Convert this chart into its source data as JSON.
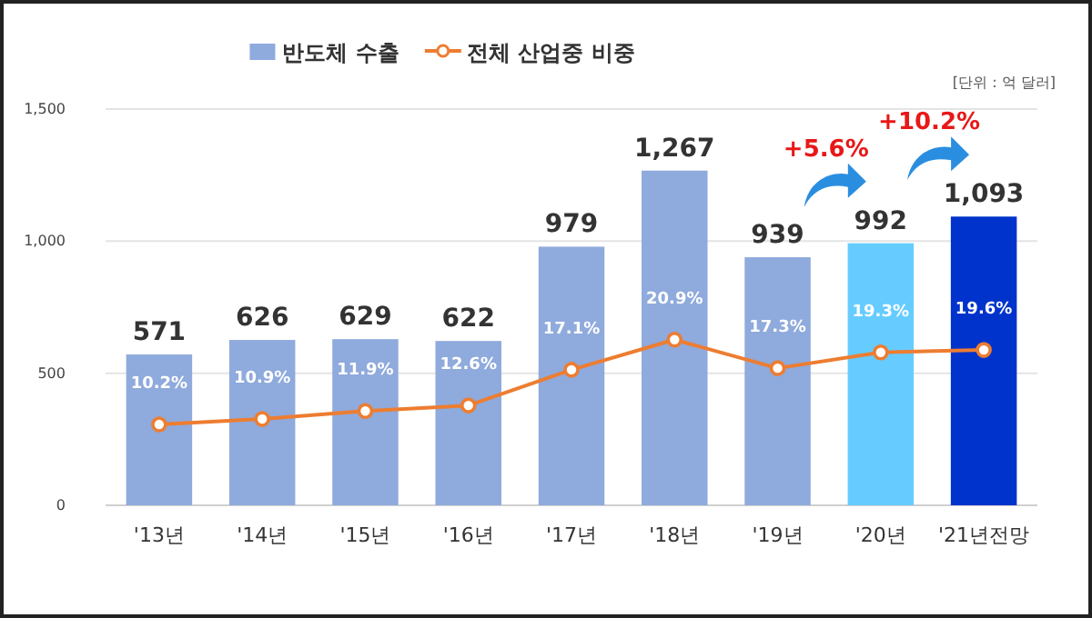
{
  "chart_data": {
    "type": "bar",
    "categories": [
      "'13년",
      "'14년",
      "'15년",
      "'16년",
      "'17년",
      "'18년",
      "'19년",
      "'20년",
      "'21년전망"
    ],
    "series": [
      {
        "name": "반도체 수출",
        "color": "#8faadc",
        "colors": [
          "#8faadc",
          "#8faadc",
          "#8faadc",
          "#8faadc",
          "#8faadc",
          "#8faadc",
          "#8faadc",
          "#66ccff",
          "#0033cc"
        ],
        "values": [
          571,
          626,
          629,
          622,
          979,
          1267,
          939,
          992,
          1093
        ],
        "value_labels": [
          "571",
          "626",
          "629",
          "622",
          "979",
          "1,267",
          "939",
          "992",
          "1,093"
        ]
      },
      {
        "name": "전체 산업중 비중",
        "type": "line",
        "axis": "y2",
        "color": "#ed7d31",
        "values": [
          10.2,
          10.9,
          11.9,
          12.6,
          17.1,
          20.9,
          17.3,
          19.3,
          19.6
        ],
        "value_labels": [
          "10.2%",
          "10.9%",
          "11.9%",
          "12.6%",
          "17.1%",
          "20.9%",
          "17.3%",
          "19.3%",
          "19.6%"
        ]
      }
    ],
    "ylim": [
      0,
      1500
    ],
    "yticks": [
      0,
      {
        "value": 500,
        "label": "500"
      },
      {
        "value": 1000,
        "label": "1,000"
      },
      {
        "value": 1500,
        "label": "1,500"
      }
    ],
    "y2lim": [
      0,
      50
    ],
    "tick_labels": "xy",
    "grid": "y",
    "legend": "top",
    "marker": "circle",
    "line_style": "solid",
    "annotations": [
      "[단위 : 억 달러]",
      "+5.6%",
      "+10.2%"
    ]
  }
}
